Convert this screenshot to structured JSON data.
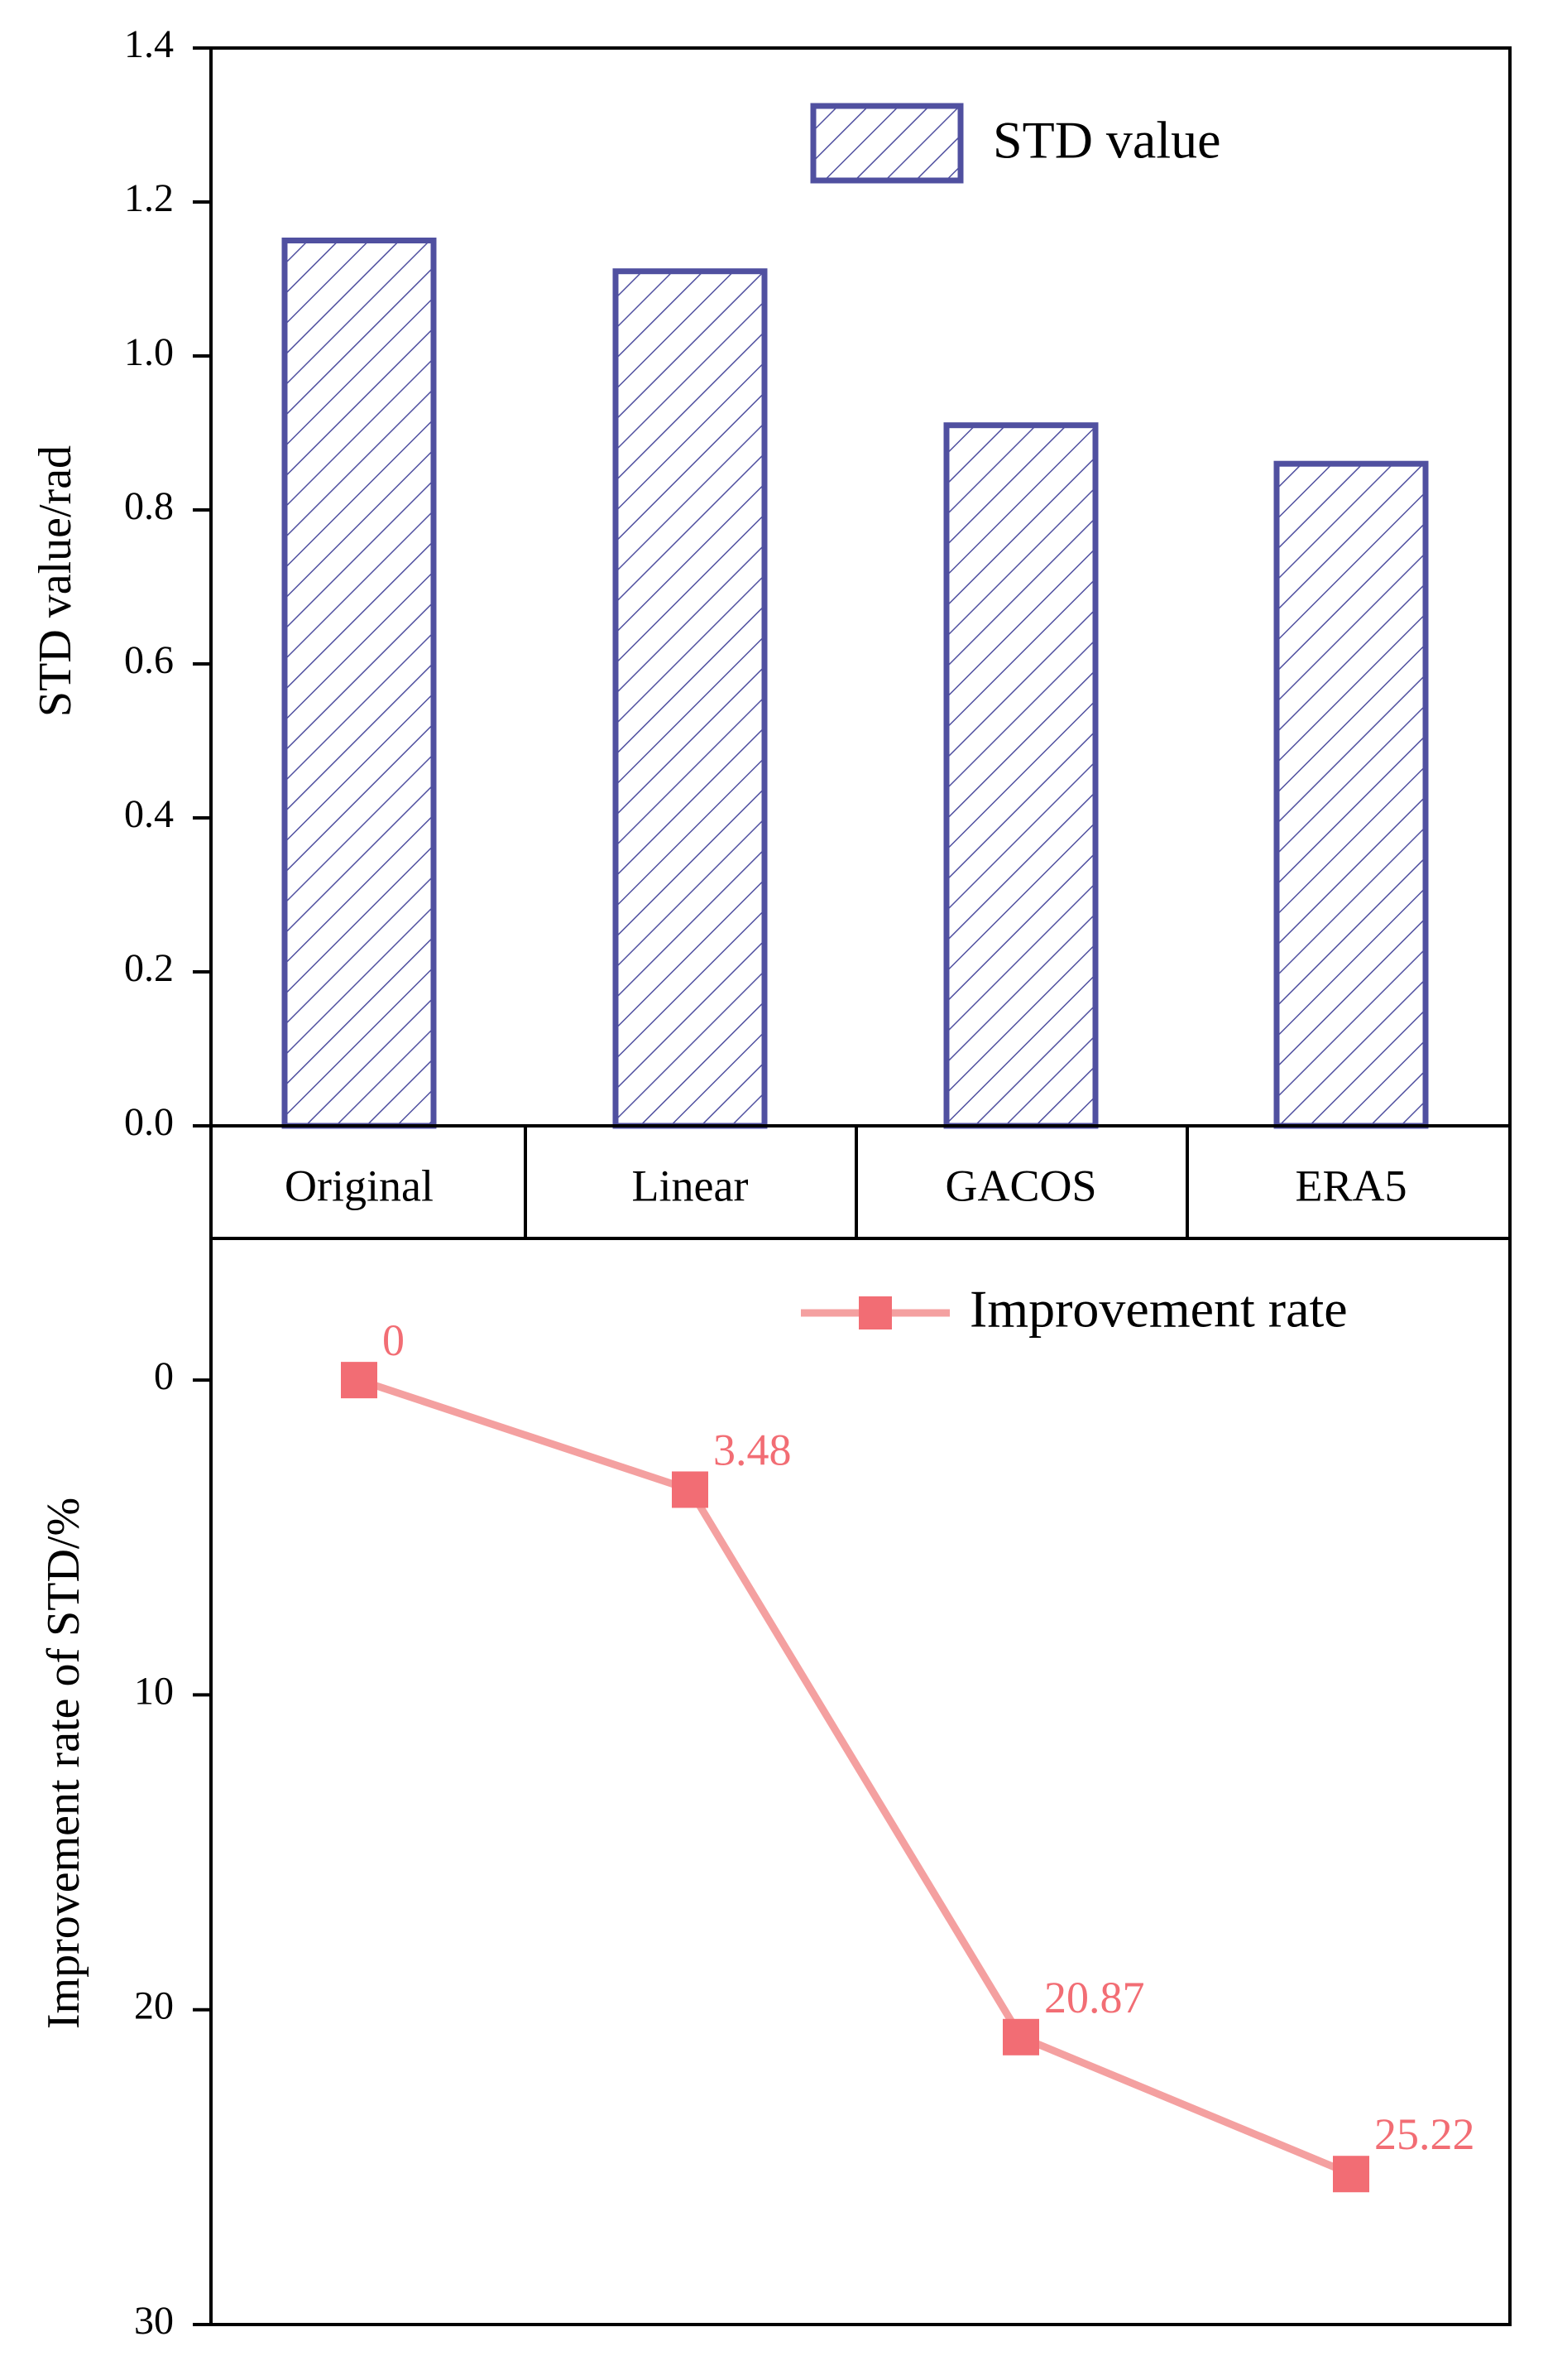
{
  "chart_data": [
    {
      "type": "bar",
      "categories": [
        "Original",
        "Linear",
        "GACOS",
        "ERA5"
      ],
      "series": [
        {
          "name": "STD value",
          "values": [
            1.15,
            1.11,
            0.91,
            0.86
          ]
        }
      ],
      "title": "",
      "xlabel": "",
      "ylabel": "STD value/rad",
      "ylim": [
        0.0,
        1.4
      ],
      "yticks": [
        "0.0",
        "0.2",
        "0.4",
        "0.6",
        "0.8",
        "1.0",
        "1.2",
        "1.4"
      ],
      "grid": false,
      "legend": {
        "position": "top-right",
        "label": "STD value"
      },
      "colors": {
        "bar_edge": "#5050a0",
        "hatch": "#5050a0"
      }
    },
    {
      "type": "line",
      "categories": [
        "Original",
        "Linear",
        "GACOS",
        "ERA5"
      ],
      "series": [
        {
          "name": "Improvement rate",
          "values": [
            0,
            3.48,
            20.87,
            25.22
          ],
          "data_labels": [
            "0",
            "3.48",
            "20.87",
            "25.22"
          ]
        }
      ],
      "title": "",
      "xlabel": "",
      "ylabel": "Improvement rate of STD/%",
      "ylim": [
        -4.5,
        30
      ],
      "y_inverted": true,
      "yticks": [
        "0",
        "10",
        "20",
        "30"
      ],
      "grid": false,
      "legend": {
        "position": "top-right",
        "label": "Improvement rate"
      },
      "colors": {
        "line": "#f4a0a0",
        "marker": "#f26d74",
        "data_label": "#f26d74"
      }
    }
  ]
}
